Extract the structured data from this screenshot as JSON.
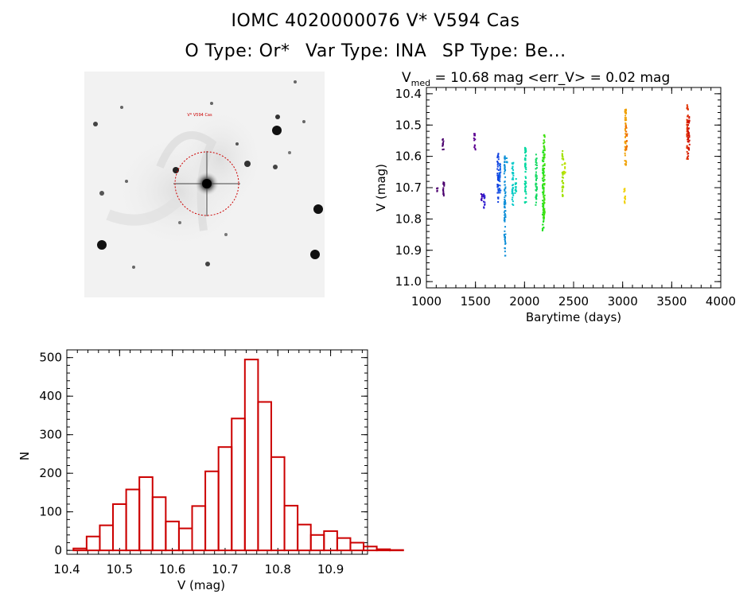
{
  "header": {
    "title_line1": "IOMC 4020000076    V* V594 Cas",
    "title_line2_otype": "O Type: Or*",
    "title_line2_vartype": "Var Type: INA",
    "title_line2_sptype": "SP Type: Be..."
  },
  "starfield": {
    "target_circle_color": "#cc0000",
    "label_top": "V* V594 Cas"
  },
  "chart_data": [
    {
      "type": "scatter",
      "title_prefix": "V",
      "title_subscript": "med",
      "title_rest": " = 10.68 mag <err_V> = 0.02 mag",
      "xlabel": "Barytime (days)",
      "ylabel": "V (mag)",
      "xlim": [
        1000,
        4000
      ],
      "ylim": [
        11.02,
        10.38
      ],
      "y_inverted": true,
      "x_ticks": [
        1000,
        1500,
        2000,
        2500,
        3000,
        3500,
        4000
      ],
      "y_ticks": [
        "10.4",
        "10.5",
        "10.6",
        "10.7",
        "10.8",
        "10.9",
        "11.0"
      ],
      "groups": [
        {
          "x": 1110,
          "ymin": 10.7,
          "ymax": 10.72,
          "color": "#4b006e"
        },
        {
          "x": 1170,
          "ymin": 10.54,
          "ymax": 10.58,
          "color": "#4b006e"
        },
        {
          "x": 1175,
          "ymin": 10.68,
          "ymax": 10.74,
          "color": "#4b006e"
        },
        {
          "x": 1490,
          "ymin": 10.52,
          "ymax": 10.55,
          "color": "#5a0090"
        },
        {
          "x": 1495,
          "ymin": 10.56,
          "ymax": 10.58,
          "color": "#5a0090"
        },
        {
          "x": 1560,
          "ymin": 10.72,
          "ymax": 10.75,
          "color": "#3b00b0"
        },
        {
          "x": 1590,
          "ymin": 10.72,
          "ymax": 10.77,
          "color": "#2a1ad0"
        },
        {
          "x": 1730,
          "ymin": 10.59,
          "ymax": 10.75,
          "color": "#1040e0"
        },
        {
          "x": 1750,
          "ymin": 10.62,
          "ymax": 10.72,
          "color": "#1060e8"
        },
        {
          "x": 1800,
          "ymin": 10.6,
          "ymax": 10.93,
          "color": "#0f8fd8"
        },
        {
          "x": 1820,
          "ymin": 10.6,
          "ymax": 10.62,
          "color": "#0f9fd8"
        },
        {
          "x": 1880,
          "ymin": 10.62,
          "ymax": 10.76,
          "color": "#00c8c8"
        },
        {
          "x": 1910,
          "ymin": 10.67,
          "ymax": 10.72,
          "color": "#00d0b8"
        },
        {
          "x": 2010,
          "ymin": 10.56,
          "ymax": 10.75,
          "color": "#00d8a0"
        },
        {
          "x": 2120,
          "ymin": 10.59,
          "ymax": 10.76,
          "color": "#10d860"
        },
        {
          "x": 2190,
          "ymin": 10.58,
          "ymax": 10.84,
          "color": "#20e020"
        },
        {
          "x": 2200,
          "ymin": 10.53,
          "ymax": 10.8,
          "color": "#40e010"
        },
        {
          "x": 2390,
          "ymin": 10.58,
          "ymax": 10.73,
          "color": "#a0e000"
        },
        {
          "x": 2410,
          "ymin": 10.62,
          "ymax": 10.66,
          "color": "#c0e000"
        },
        {
          "x": 3020,
          "ymin": 10.7,
          "ymax": 10.75,
          "color": "#f0d000"
        },
        {
          "x": 3030,
          "ymin": 10.45,
          "ymax": 10.63,
          "color": "#f0a000"
        },
        {
          "x": 3040,
          "ymin": 10.5,
          "ymax": 10.58,
          "color": "#f07000"
        },
        {
          "x": 3660,
          "ymin": 10.42,
          "ymax": 10.61,
          "color": "#e03000"
        },
        {
          "x": 3675,
          "ymin": 10.47,
          "ymax": 10.6,
          "color": "#d01000"
        }
      ]
    },
    {
      "type": "bar",
      "xlabel": "V (mag)",
      "ylabel": "N",
      "xlim": [
        10.4,
        10.97
      ],
      "ylim": [
        -10,
        520
      ],
      "x_ticks": [
        "10.4",
        "10.5",
        "10.6",
        "10.7",
        "10.8",
        "10.9"
      ],
      "y_ticks": [
        "0",
        "100",
        "200",
        "300",
        "400",
        "500"
      ],
      "bin_width": 0.025,
      "bin_start": 10.4125,
      "values": [
        5,
        36,
        65,
        120,
        158,
        190,
        138,
        75,
        57,
        115,
        205,
        268,
        342,
        495,
        385,
        242,
        116,
        67,
        40,
        50,
        32,
        20,
        10,
        3,
        1
      ],
      "color": "#cc0000"
    }
  ]
}
